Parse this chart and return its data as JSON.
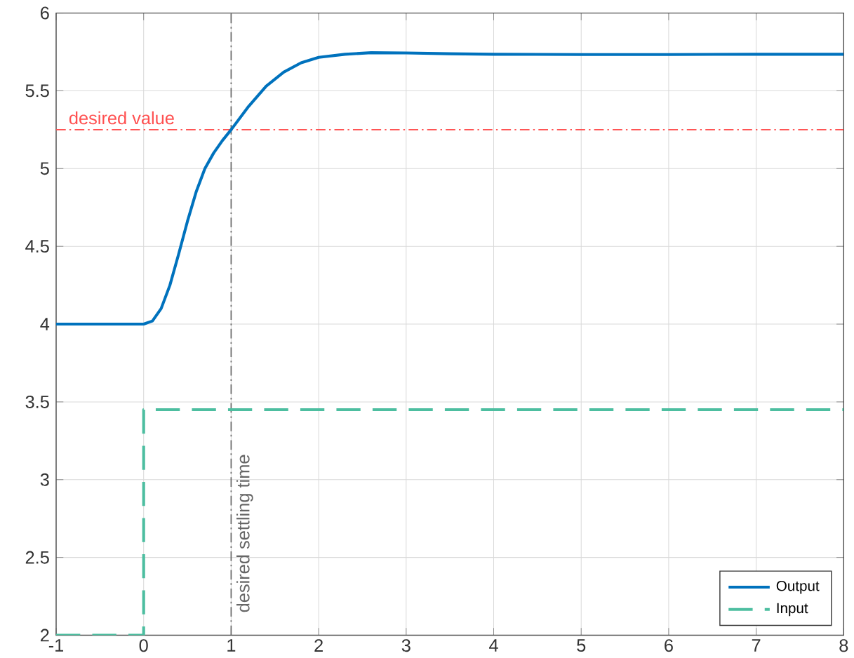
{
  "chart_data": {
    "type": "line",
    "series": [
      {
        "name": "Output",
        "color": "#0072bd",
        "line_style": "solid",
        "x": [
          -1,
          0,
          0.1,
          0.2,
          0.3,
          0.4,
          0.5,
          0.6,
          0.7,
          0.8,
          0.9,
          1,
          1.2,
          1.4,
          1.6,
          1.8,
          2,
          2.3,
          2.6,
          3,
          3.5,
          4,
          5,
          6,
          7,
          8
        ],
        "values": [
          4,
          4,
          4.02,
          4.1,
          4.25,
          4.45,
          4.66,
          4.85,
          5.0,
          5.1,
          5.18,
          5.25,
          5.4,
          5.53,
          5.62,
          5.68,
          5.715,
          5.735,
          5.745,
          5.743,
          5.738,
          5.735,
          5.733,
          5.733,
          5.735,
          5.735
        ]
      },
      {
        "name": "Input",
        "color": "#4dbea0",
        "line_style": "dashed",
        "x": [
          -1,
          0,
          0,
          8
        ],
        "values": [
          2,
          2,
          3.45,
          3.45
        ]
      }
    ],
    "xlim": [
      -1,
      8
    ],
    "xticks": [
      -1,
      0,
      1,
      2,
      3,
      4,
      5,
      6,
      7,
      8
    ],
    "ylim": [
      2,
      6
    ],
    "yticks": [
      2,
      2.5,
      3,
      3.5,
      4,
      4.5,
      5,
      5.5,
      6
    ],
    "ref_lines": [
      {
        "axis": "y",
        "value": 5.25,
        "label": "desired value",
        "color": "#ff5050",
        "line_style": "dashdot"
      },
      {
        "axis": "x",
        "value": 1,
        "label": "desired settling time",
        "color": "#666666",
        "line_style": "dashdot"
      }
    ],
    "grid": true,
    "legend": "bottom right",
    "marker": "none"
  }
}
